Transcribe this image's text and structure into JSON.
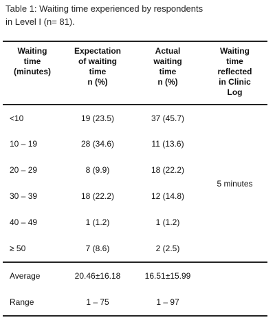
{
  "caption": {
    "line1": "Table 1: Waiting time experienced by respondents",
    "line2": "in Level I (n= 81)."
  },
  "table": {
    "headers": [
      [
        "Waiting",
        "time",
        "(minutes)"
      ],
      [
        "Expectation",
        "of waiting",
        "time",
        "n (%)"
      ],
      [
        "Actual",
        "waiting",
        "time",
        "n (%)"
      ],
      [
        "Waiting",
        "time",
        "reflected",
        "in Clinic",
        "Log"
      ]
    ],
    "rows": [
      {
        "time": "<10",
        "expectation": "19 (23.5)",
        "actual": "37 (45.7)"
      },
      {
        "time": "10 – 19",
        "expectation": "28 (34.6)",
        "actual": "11 (13.6)"
      },
      {
        "time": "20 – 29",
        "expectation": "8 (9.9)",
        "actual": "18 (22.2)"
      },
      {
        "time": "30 – 39",
        "expectation": "18 (22.2)",
        "actual": "12 (14.8)"
      },
      {
        "time": "40 – 49",
        "expectation": "1 (1.2)",
        "actual": "1 (1.2)"
      },
      {
        "time": "≥ 50",
        "expectation": "7 (8.6)",
        "actual": "2 (2.5)"
      }
    ],
    "clinic_log": "5 minutes",
    "average": {
      "label": "Average",
      "expectation": "20.46±16.18",
      "actual": "16.51±15.99"
    },
    "range": {
      "label": "Range",
      "expectation": "1 – 75",
      "actual": "1 – 97"
    }
  }
}
